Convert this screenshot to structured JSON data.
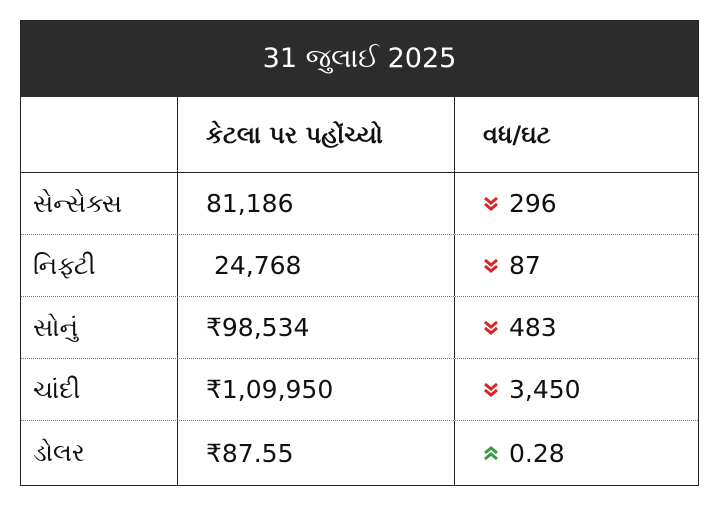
{
  "title": "31 જુલાઈ 2025",
  "headers": [
    "",
    "કેટલા પર પહોંચ્યો",
    "વધ/ઘટ"
  ],
  "colors": {
    "down": "#d7262b",
    "up": "#3a9b45",
    "header_bg": "#2c2c2c"
  },
  "rows": [
    {
      "name": "સેન્સેક્સ",
      "value": "81,186",
      "change": "296",
      "direction": "down"
    },
    {
      "name": "નિફ્ટી",
      "value": " 24,768",
      "change": "87",
      "direction": "down"
    },
    {
      "name": "સોનું",
      "value": "₹98,534",
      "change": "483",
      "direction": "down"
    },
    {
      "name": "ચાંદી",
      "value": "₹1,09,950",
      "change": "3,450",
      "direction": "down"
    },
    {
      "name": "ડોલર",
      "value": "₹87.55",
      "change": "0.28",
      "direction": "up"
    }
  ]
}
